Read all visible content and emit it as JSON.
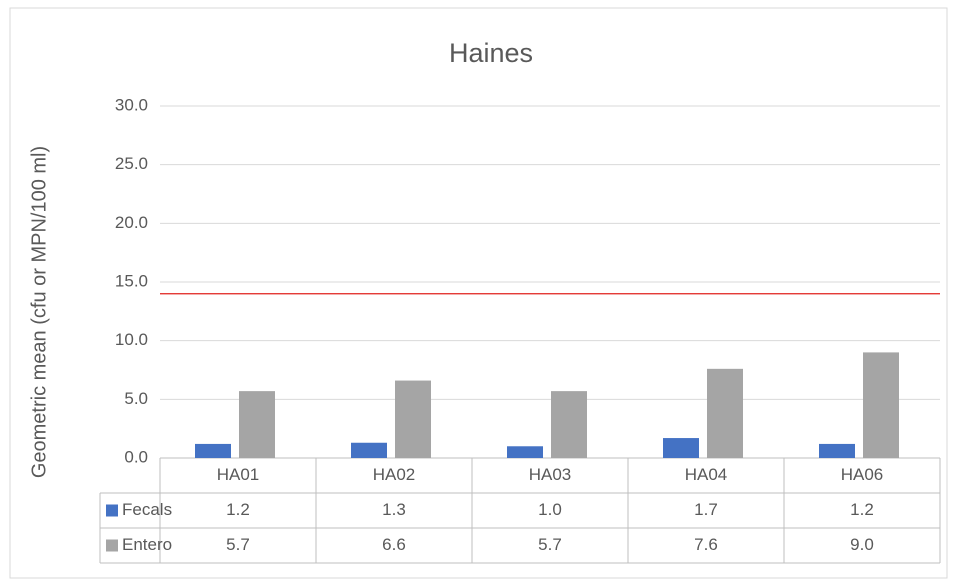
{
  "chart_data": {
    "type": "bar",
    "title": "Haines",
    "y_label": "Geometric mean (cfu or MPN/100 ml)",
    "categories": [
      "HA01",
      "HA02",
      "HA03",
      "HA04",
      "HA06"
    ],
    "series": [
      {
        "name": "Fecals",
        "color": "#4472c4",
        "values": [
          1.2,
          1.3,
          1.0,
          1.7,
          1.2
        ],
        "value_labels": [
          "1.2",
          "1.3",
          "1.0",
          "1.7",
          "1.2"
        ]
      },
      {
        "name": "Entero",
        "color": "#a5a5a5",
        "values": [
          5.7,
          6.6,
          5.7,
          7.6,
          9.0
        ],
        "value_labels": [
          "5.7",
          "6.6",
          "5.7",
          "7.6",
          "9.0"
        ]
      }
    ],
    "reference_line": {
      "value": 14,
      "color": "#e0201b"
    },
    "ylim": [
      0,
      30
    ],
    "yticks": [
      {
        "value": 0,
        "label": "0.0"
      },
      {
        "value": 5,
        "label": "5.0"
      },
      {
        "value": 10,
        "label": "10.0"
      },
      {
        "value": 15,
        "label": "15.0"
      },
      {
        "value": 20,
        "label": "20.0"
      },
      {
        "value": 25,
        "label": "25.0"
      },
      {
        "value": 30,
        "label": "30.0"
      }
    ],
    "grid": true,
    "data_table": true
  }
}
